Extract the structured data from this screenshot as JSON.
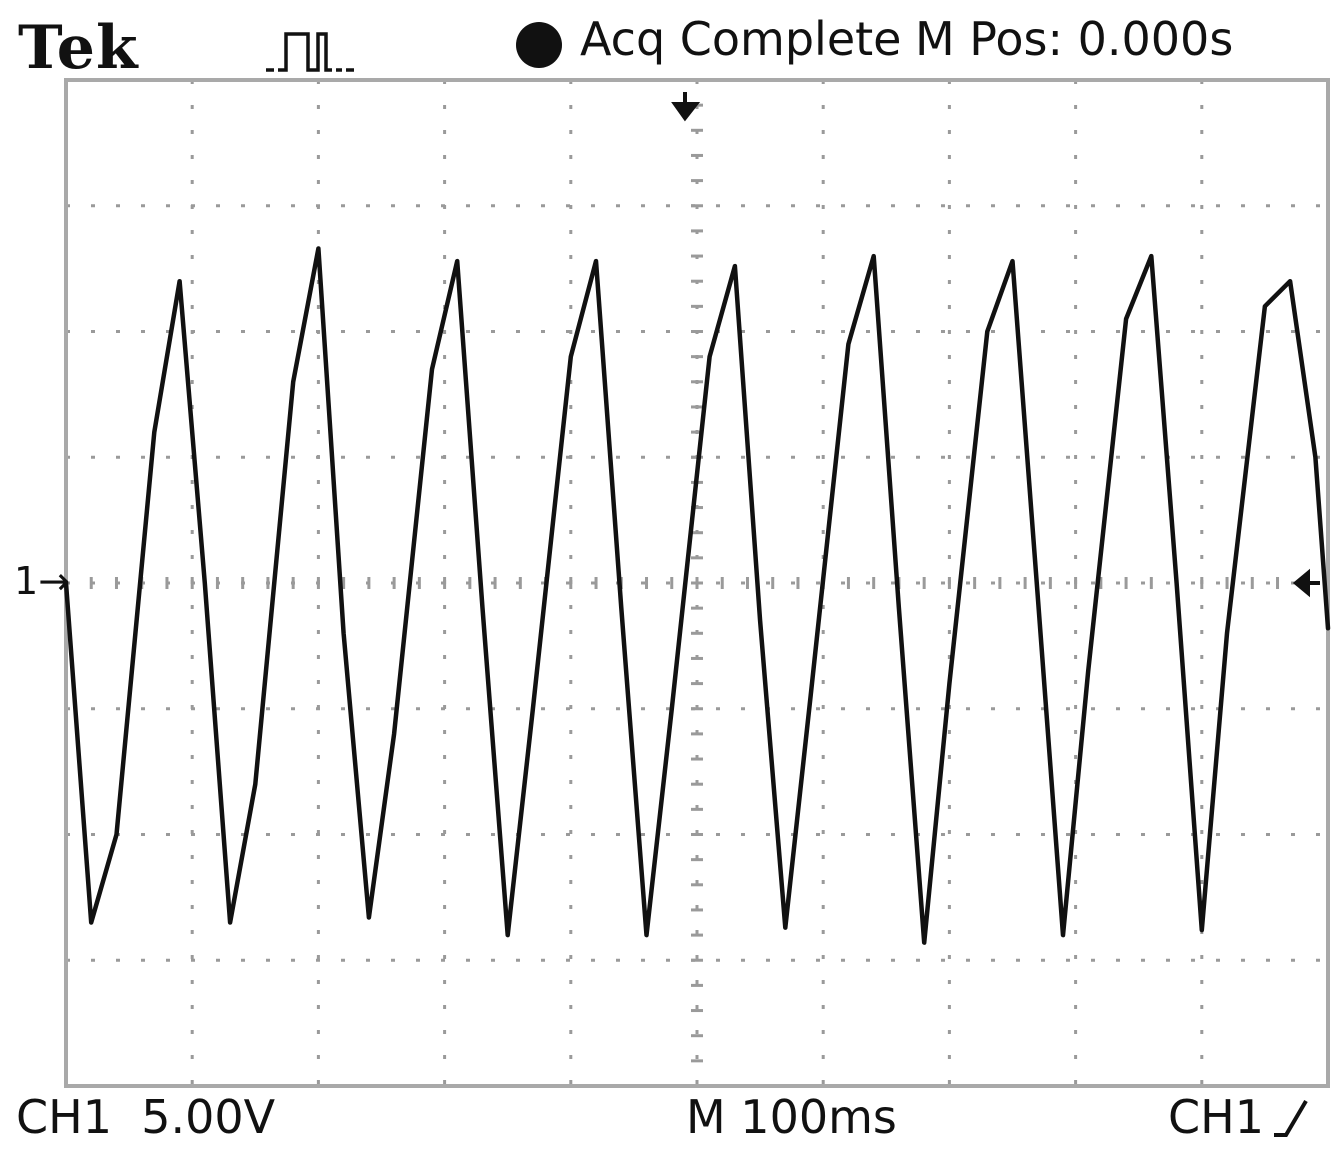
{
  "header": {
    "brand": "Tek",
    "acquisition_icon": "run-pulse-icon",
    "status_icon": "filled-circle-icon",
    "status": "Acq Complete",
    "main_position": "M Pos: 0.000s"
  },
  "footer": {
    "channel_scale": "CH1  5.00V",
    "time_scale": "M 100ms",
    "trigger_source": "CH1",
    "trigger_slope_icon": "rising-edge-icon"
  },
  "markers": {
    "channel_ref": "1",
    "trigger_position_icon": "down-arrow-icon",
    "trigger_level_icon": "left-arrow-icon"
  },
  "chart_data": {
    "type": "line",
    "title": "",
    "xlabel": "",
    "ylabel": "",
    "volts_per_div": 5.0,
    "seconds_per_div": 0.1,
    "x_unit": "s",
    "y_unit": "V",
    "xlim": [
      0,
      1.0
    ],
    "ylim": [
      -20,
      20
    ],
    "grid": true,
    "series": [
      {
        "x": [
          0.0,
          0.02,
          0.04,
          0.07,
          0.09,
          0.11,
          0.13,
          0.15,
          0.18,
          0.2,
          0.22,
          0.24,
          0.26,
          0.29,
          0.31,
          0.33,
          0.35,
          0.37,
          0.4,
          0.42,
          0.44,
          0.46,
          0.48,
          0.51,
          0.53,
          0.55,
          0.57,
          0.59,
          0.62,
          0.64,
          0.66,
          0.68,
          0.7,
          0.73,
          0.75,
          0.77,
          0.79,
          0.81,
          0.84,
          0.86,
          0.88,
          0.9,
          0.92,
          0.95,
          0.97,
          0.99,
          1.0
        ],
        "y": [
          0.0,
          -13.5,
          -10.0,
          6.0,
          12.0,
          0.0,
          -13.5,
          -8.0,
          8.0,
          13.3,
          -2.0,
          -13.3,
          -6.0,
          8.5,
          12.8,
          -1.0,
          -14.0,
          -5.0,
          9.0,
          12.8,
          -1.0,
          -14.0,
          -5.0,
          9.0,
          12.6,
          -1.5,
          -13.7,
          -4.5,
          9.5,
          13.0,
          -1.0,
          -14.3,
          -4.0,
          10.0,
          12.8,
          -0.5,
          -14.0,
          -3.5,
          10.5,
          13.0,
          0.0,
          -13.8,
          -2.0,
          11.0,
          12.0,
          5.0,
          -1.8
        ]
      }
    ]
  }
}
